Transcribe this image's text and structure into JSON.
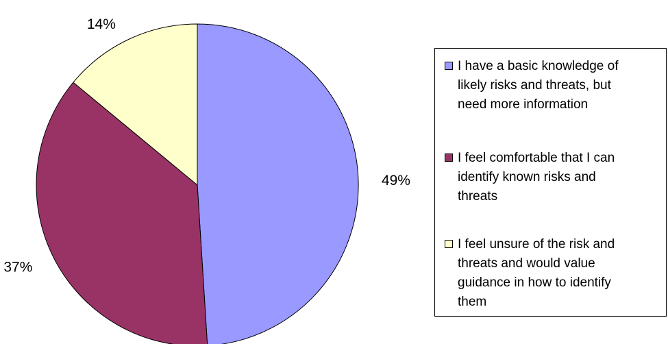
{
  "chart_data": {
    "type": "pie",
    "title": "",
    "start_angle_deg": 0,
    "direction": "clockwise",
    "legend_position": "right",
    "slices": [
      {
        "label": "I have a basic knowledge of\nlikely risks and threats, but\nneed more information",
        "value": 49,
        "display": "49%",
        "color": "#9999ff"
      },
      {
        "label": "I feel comfortable that I can\nidentify known risks and\nthreats",
        "value": 37,
        "display": "37%",
        "color": "#993366"
      },
      {
        "label": "I feel unsure of the risk and\nthreats and would value\nguidance in how to identify\nthem",
        "value": 14,
        "display": "14%",
        "color": "#ffffcc"
      }
    ]
  }
}
